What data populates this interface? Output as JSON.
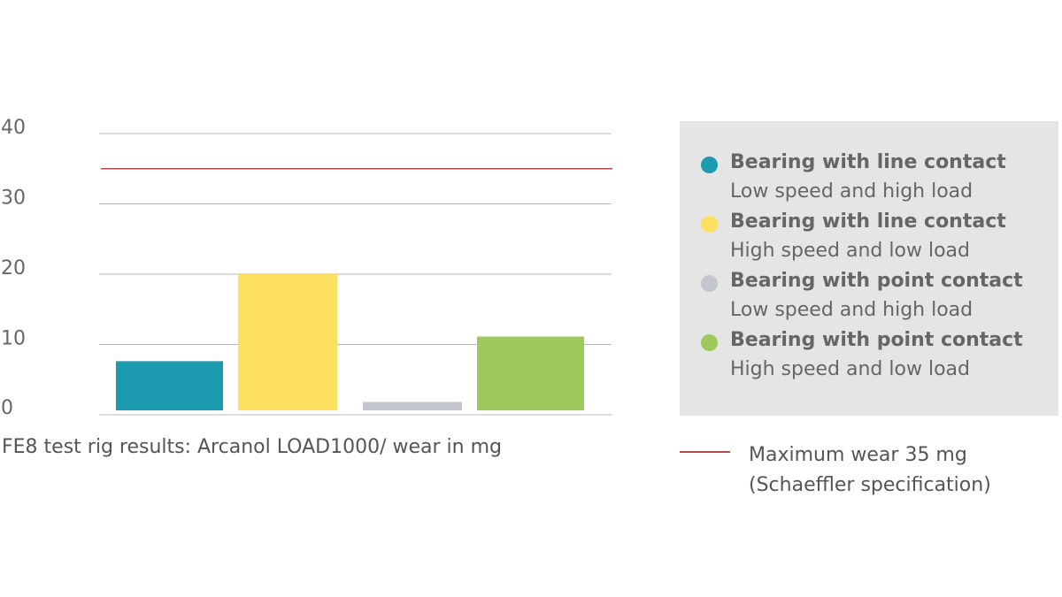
{
  "chart_data": {
    "type": "bar",
    "categories": [
      "Bearing with line contact — Low speed and high load",
      "Bearing with line contact — High speed and low load",
      "Bearing with point contact — Low speed and high load",
      "Bearing with point contact — High speed and low load"
    ],
    "values": [
      7,
      19.5,
      1.2,
      10.5
    ],
    "colors": [
      "#1c9aaf",
      "#fde05f",
      "#c3c6cd",
      "#9ec95c"
    ],
    "ylim": [
      0,
      40
    ],
    "yticks": [
      "0",
      "10",
      "20",
      "30",
      "40"
    ],
    "reference_line": {
      "value": 35,
      "color": "#b04b52"
    },
    "caption": "FE8 test rig results: Arcanol LOAD1000/ wear in mg",
    "legend": [
      {
        "title": "Bearing with line contact",
        "subtitle": "Low speed and high load",
        "color": "#1c9aaf"
      },
      {
        "title": "Bearing with line contact",
        "subtitle": "High speed and low load",
        "color": "#fde05f"
      },
      {
        "title": "Bearing with point contact",
        "subtitle": "Low speed and high load",
        "color": "#c3c6cd"
      },
      {
        "title": "Bearing with point contact",
        "subtitle": "High speed and low load",
        "color": "#9ec95c"
      }
    ],
    "reference_legend": {
      "line1": "Maximum wear 35 mg",
      "line2": "(Schaeffler specification)"
    },
    "grid": true,
    "legend_position": "right"
  }
}
